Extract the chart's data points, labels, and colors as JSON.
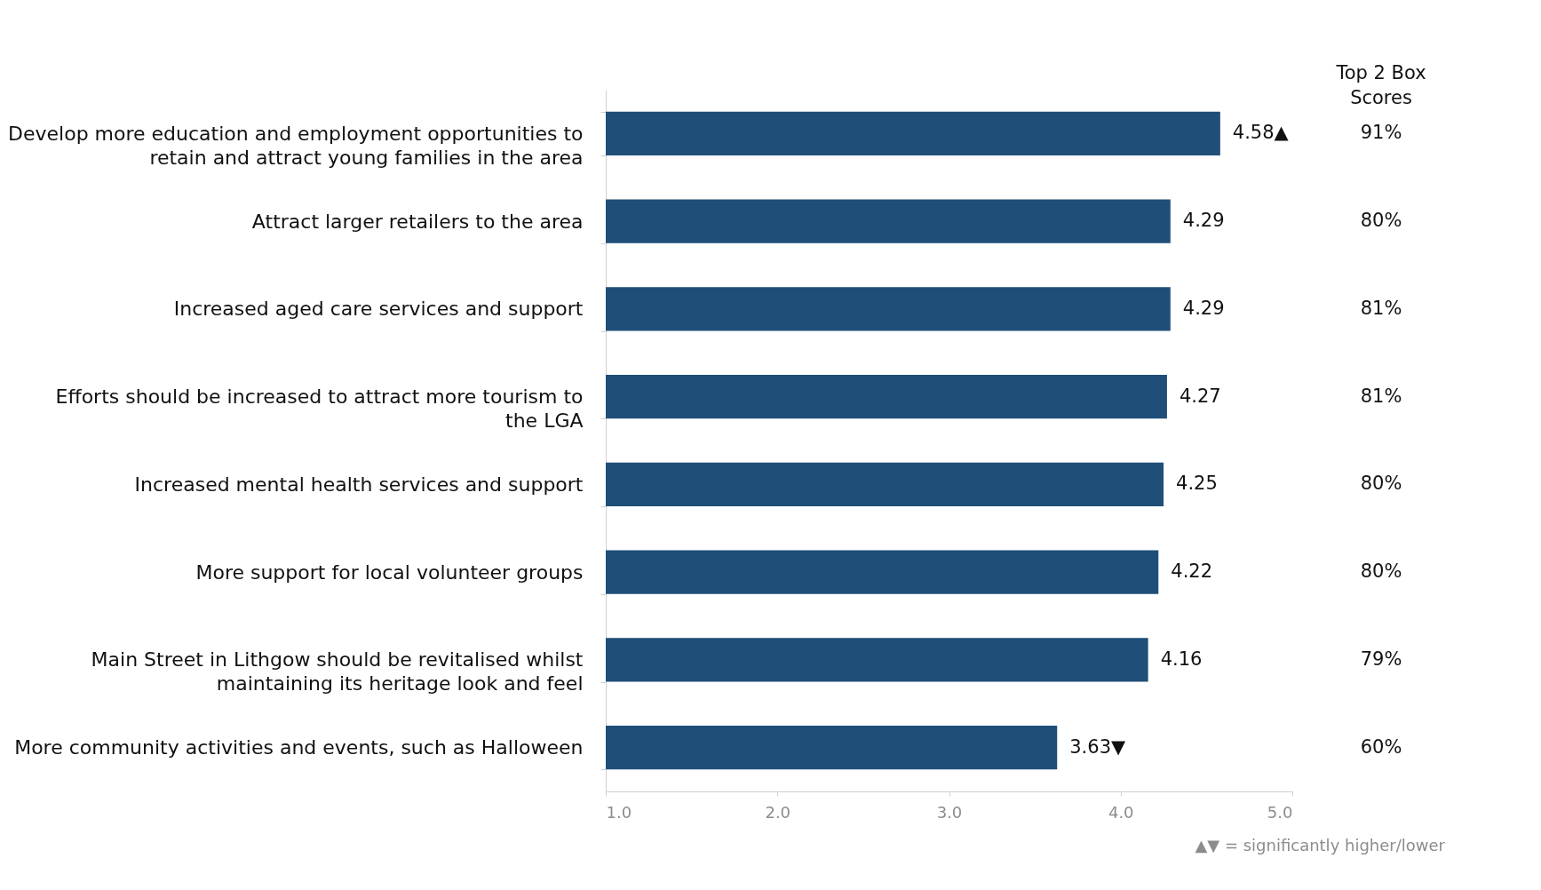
{
  "chart_data": {
    "type": "bar",
    "orientation": "horizontal",
    "color": "#1f4e79",
    "grid": false,
    "categories": [
      "Develop more education and employment opportunities to retain and attract young families in the area",
      "Attract larger retailers to the area",
      "Increased aged care services and support",
      "Efforts should be increased to attract more tourism to the LGA",
      "Increased mental health services and support",
      "More support for local volunteer groups",
      "Main Street in Lithgow should be revitalised whilst maintaining its heritage look and feel",
      "More community activities and events, such as Halloween"
    ],
    "values": [
      4.58,
      4.29,
      4.29,
      4.27,
      4.25,
      4.22,
      4.16,
      3.63
    ],
    "value_labels": [
      "4.58▲",
      "4.29",
      "4.29",
      "4.27",
      "4.25",
      "4.22",
      "4.16",
      "3.63▼"
    ],
    "xlim": [
      1,
      5
    ],
    "xticks": [
      {
        "value": 1,
        "label": "1.0"
      },
      {
        "value": 2,
        "label": "2.0"
      },
      {
        "value": 3,
        "label": "3.0"
      },
      {
        "value": 4,
        "label": "4.0"
      },
      {
        "value": 5,
        "label": "5.0"
      }
    ],
    "annotations": [
      "Top 2 Box Scores",
      "91%",
      "80%",
      "81%",
      "81%",
      "80%",
      "80%",
      "79%",
      "60%",
      "▲▼ = significantly higher/lower"
    ]
  }
}
